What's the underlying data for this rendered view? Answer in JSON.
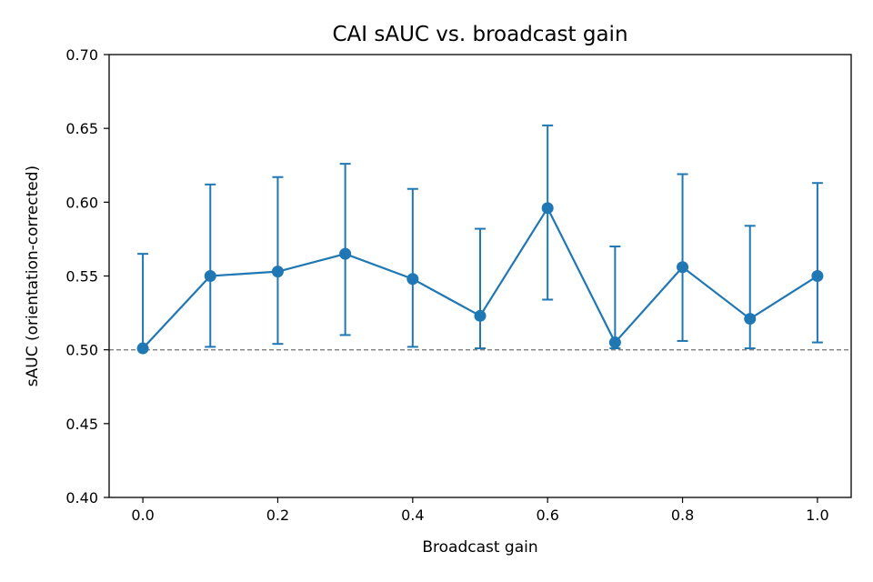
{
  "chart_data": {
    "type": "line",
    "title": "CAI sAUC vs. broadcast gain",
    "xlabel": "Broadcast gain",
    "ylabel": "sAUC (orientation-corrected)",
    "xlim": [
      -0.05,
      1.05
    ],
    "ylim": [
      0.4,
      0.7
    ],
    "xticks": [
      0.0,
      0.2,
      0.4,
      0.6,
      0.8,
      1.0
    ],
    "xtick_labels": [
      "0.0",
      "0.2",
      "0.4",
      "0.6",
      "0.8",
      "1.0"
    ],
    "yticks": [
      0.4,
      0.45,
      0.5,
      0.55,
      0.6,
      0.65,
      0.7
    ],
    "ytick_labels": [
      "0.40",
      "0.45",
      "0.50",
      "0.55",
      "0.60",
      "0.65",
      "0.70"
    ],
    "grid": false,
    "series": [
      {
        "x": [
          0.0,
          0.1,
          0.2,
          0.3,
          0.4,
          0.5,
          0.6,
          0.7,
          0.8,
          0.9,
          1.0
        ],
        "y": [
          0.501,
          0.55,
          0.553,
          0.565,
          0.548,
          0.523,
          0.596,
          0.505,
          0.556,
          0.521,
          0.55
        ],
        "err_low": [
          0.501,
          0.502,
          0.504,
          0.51,
          0.502,
          0.501,
          0.534,
          0.501,
          0.506,
          0.501,
          0.505
        ],
        "err_high": [
          0.565,
          0.612,
          0.617,
          0.626,
          0.609,
          0.582,
          0.652,
          0.57,
          0.619,
          0.584,
          0.613
        ],
        "color": "#1f77b4"
      }
    ],
    "reference_line": {
      "y": 0.5,
      "style": "dashed",
      "color": "#808080"
    }
  }
}
